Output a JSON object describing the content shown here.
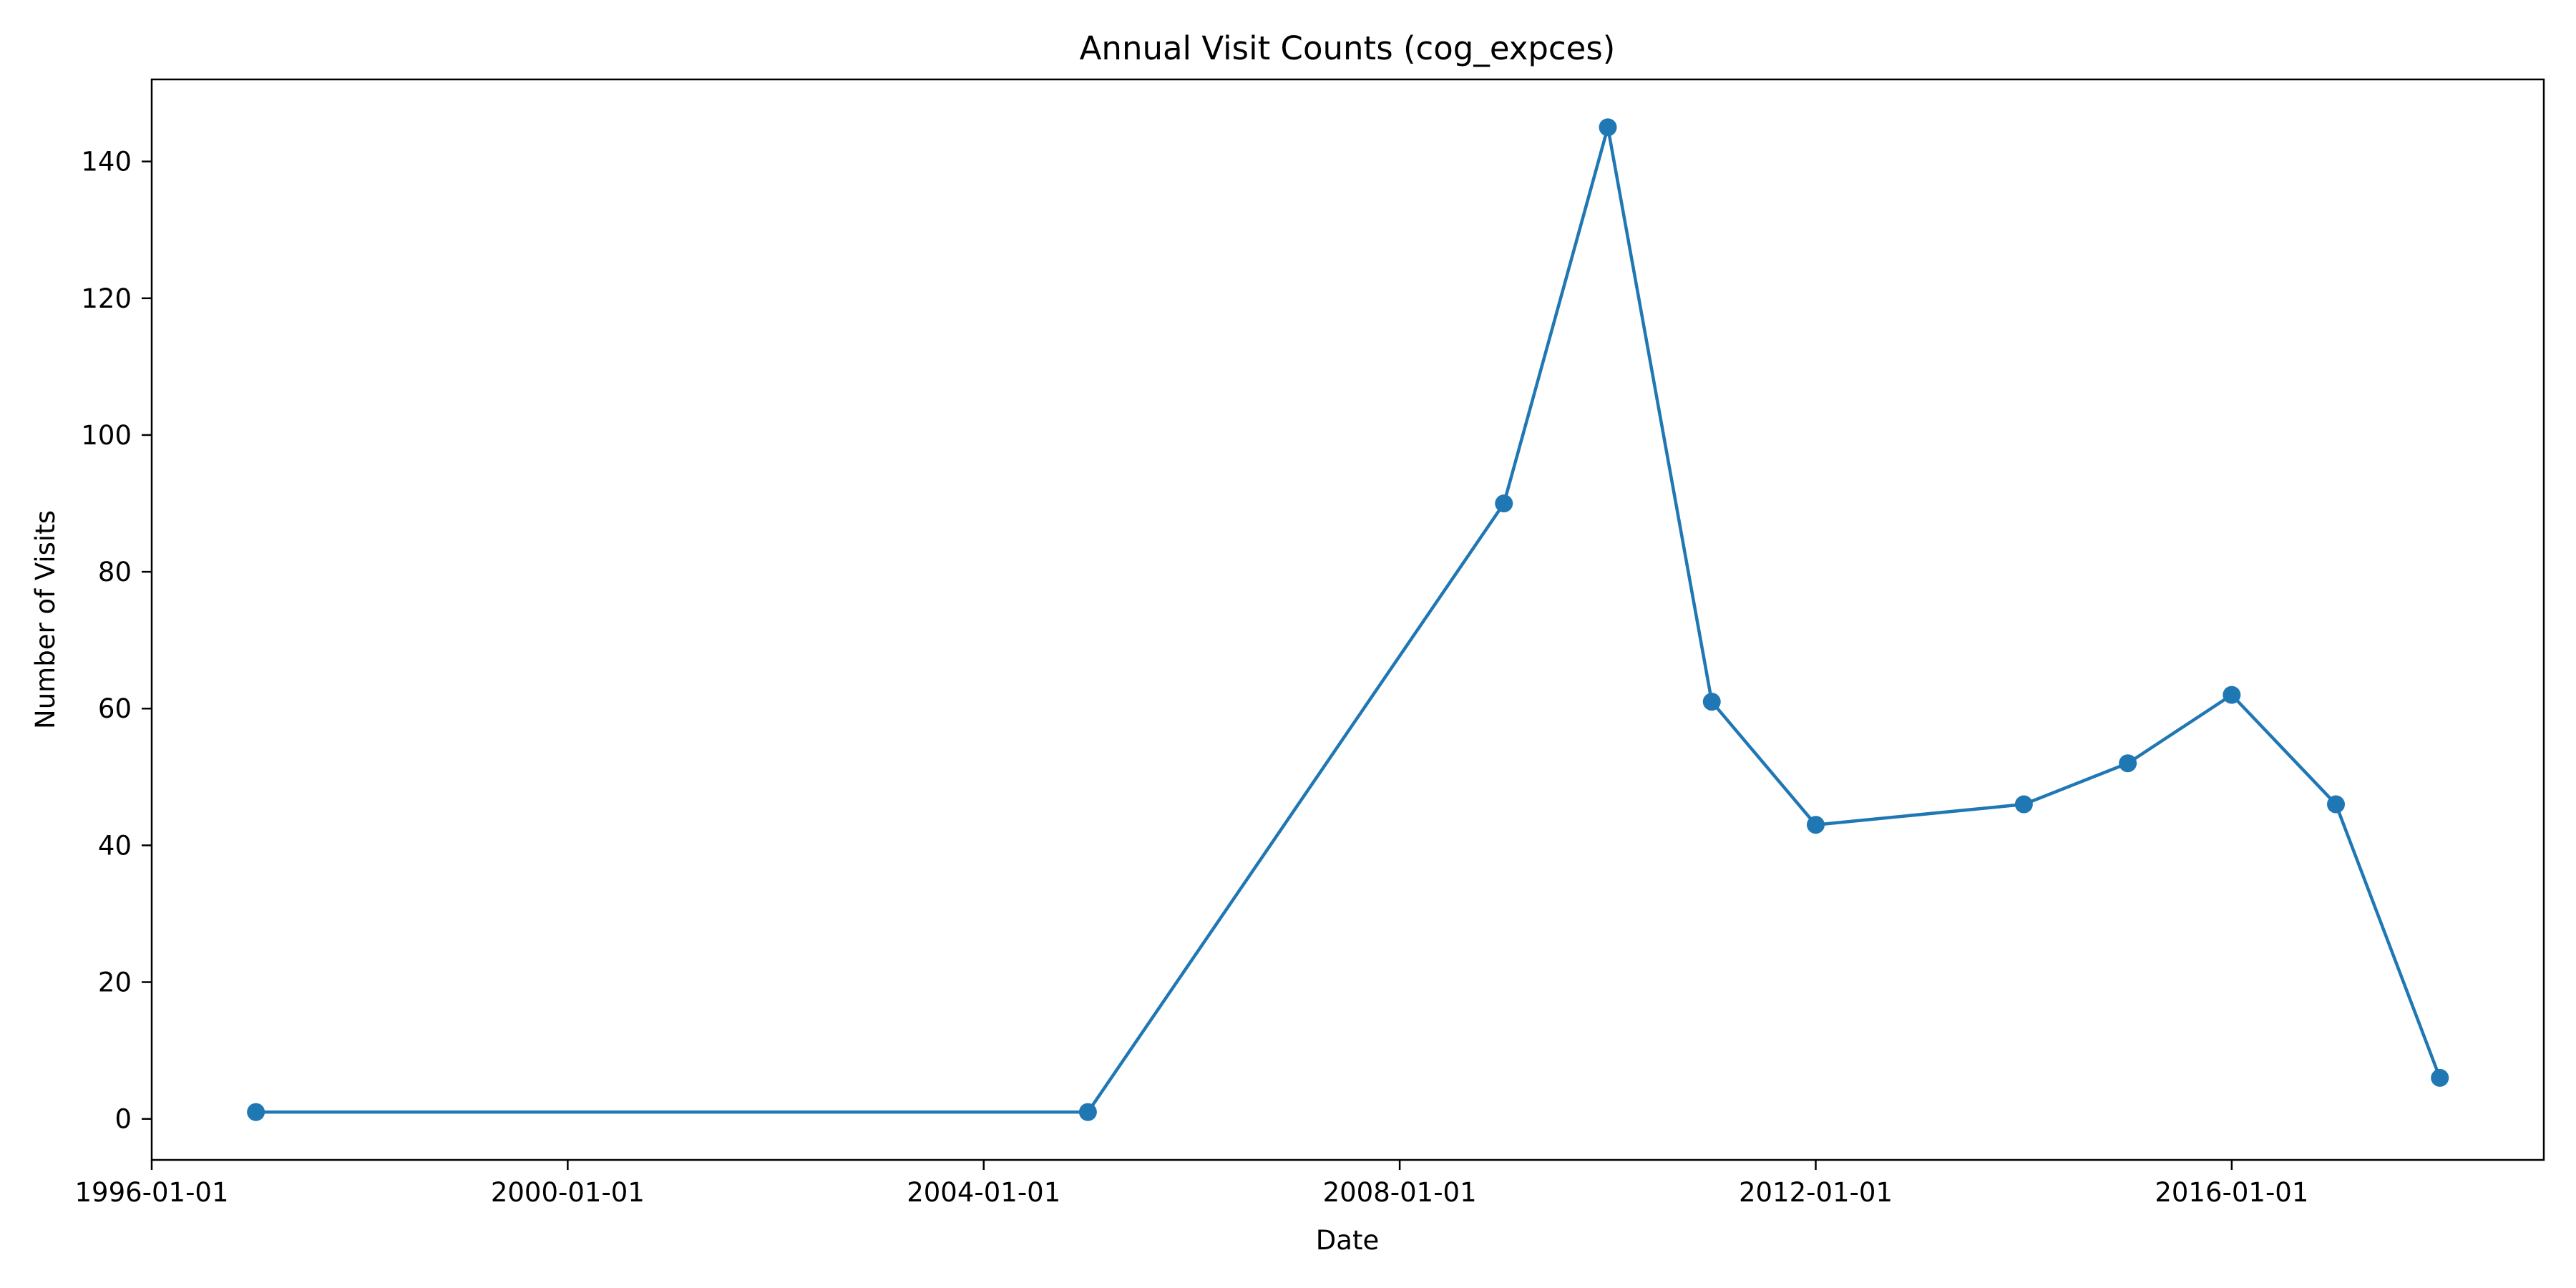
{
  "chart_data": {
    "type": "line",
    "title": "Annual Visit Counts (cog_expces)",
    "xlabel": "Date",
    "ylabel": "Number of Visits",
    "x_scale": "date",
    "xlim": [
      "1996-01-01",
      "2019-01-01"
    ],
    "ylim": [
      -6,
      152
    ],
    "x_ticks": [
      "1996-01-01",
      "2000-01-01",
      "2004-01-01",
      "2008-01-01",
      "2012-01-01",
      "2016-01-01"
    ],
    "y_ticks": [
      0,
      20,
      40,
      60,
      80,
      100,
      120,
      140
    ],
    "grid": false,
    "legend": "none",
    "series": [
      {
        "color": "#1f77b4",
        "marker": "circle",
        "points": [
          {
            "x": "1997-01-01",
            "y": 1
          },
          {
            "x": "2005-01-01",
            "y": 1
          },
          {
            "x": "2009-01-01",
            "y": 90
          },
          {
            "x": "2010-01-01",
            "y": 145
          },
          {
            "x": "2011-01-01",
            "y": 61
          },
          {
            "x": "2012-01-01",
            "y": 43
          },
          {
            "x": "2014-01-01",
            "y": 46
          },
          {
            "x": "2015-01-01",
            "y": 52
          },
          {
            "x": "2016-01-01",
            "y": 62
          },
          {
            "x": "2017-01-01",
            "y": 46
          },
          {
            "x": "2018-01-01",
            "y": 6
          }
        ]
      }
    ]
  }
}
